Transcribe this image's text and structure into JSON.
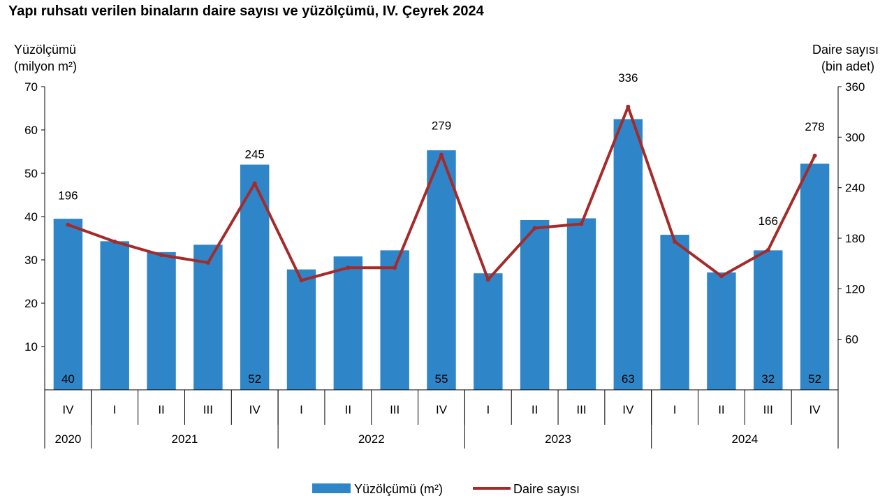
{
  "chart_data": {
    "type": "bar+line",
    "title": "Yapı ruhsatı verilen binaların daire sayısı ve yüzölçümü, IV. Çeyrek 2024",
    "y_left_label_1": "Yüzölçümü",
    "y_left_label_2": "(milyon m²)",
    "y_right_label_1": "Daire sayısı",
    "y_right_label_2": "(bin adet)",
    "y_left_ticks": [
      "10",
      "20",
      "30",
      "40",
      "50",
      "60",
      "70"
    ],
    "y_right_ticks": [
      "60",
      "120",
      "180",
      "240",
      "300",
      "360"
    ],
    "ylim_left": [
      0,
      70
    ],
    "ylim_right": [
      0,
      360
    ],
    "categories": [
      "IV",
      "I",
      "II",
      "III",
      "IV",
      "I",
      "II",
      "III",
      "IV",
      "I",
      "II",
      "III",
      "IV",
      "I",
      "II",
      "III",
      "IV"
    ],
    "years": [
      {
        "label": "2020",
        "span": 1
      },
      {
        "label": "2021",
        "span": 4
      },
      {
        "label": "2022",
        "span": 4
      },
      {
        "label": "2023",
        "span": 4
      },
      {
        "label": "2024",
        "span": 4
      }
    ],
    "series": [
      {
        "name": "Yüzölçümü (m²)",
        "type": "bar",
        "axis": "left",
        "color": "#2e86c9",
        "values": [
          39.5,
          34.3,
          31.8,
          33.5,
          52,
          27.8,
          30.8,
          32.2,
          55.3,
          26.9,
          39.2,
          39.6,
          62.5,
          35.8,
          27.1,
          32.2,
          52.2
        ],
        "labels": [
          "40",
          "",
          "",
          "",
          "52",
          "",
          "",
          "",
          "55",
          "",
          "",
          "",
          "63",
          "",
          "",
          "32",
          "52"
        ]
      },
      {
        "name": "Daire sayısı",
        "type": "line",
        "axis": "right",
        "color": "#a52a2a",
        "values": [
          196,
          176,
          160,
          151,
          245,
          130,
          145,
          145,
          279,
          131,
          192,
          197,
          336,
          176,
          135,
          166,
          278
        ],
        "labels": [
          "196",
          "",
          "",
          "",
          "245",
          "",
          "",
          "",
          "279",
          "",
          "",
          "",
          "336",
          "",
          "",
          "166",
          "278"
        ]
      }
    ],
    "legend_position": "bottom"
  }
}
